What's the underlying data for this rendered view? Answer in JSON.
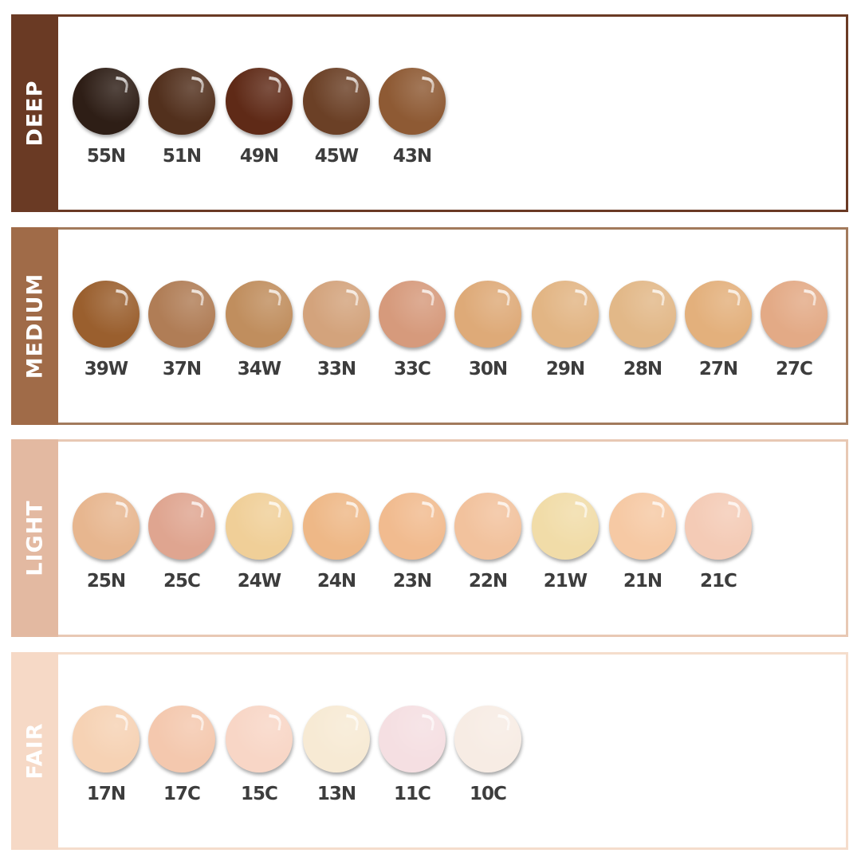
{
  "groups": [
    {
      "name": "DEEP",
      "color": "#6a3a24",
      "border": "#6a3a24",
      "shades": [
        {
          "code": "55N",
          "color": "#2e1e16"
        },
        {
          "code": "51N",
          "color": "#52301d"
        },
        {
          "code": "49N",
          "color": "#5f2a17"
        },
        {
          "code": "45W",
          "color": "#6b4026"
        },
        {
          "code": "43N",
          "color": "#8e5a34"
        }
      ]
    },
    {
      "name": "MEDIUM",
      "color": "#a06b48",
      "border": "#a27a5c",
      "shades": [
        {
          "code": "39W",
          "color": "#9a5f2e"
        },
        {
          "code": "37N",
          "color": "#b07d56"
        },
        {
          "code": "34W",
          "color": "#c08e5e"
        },
        {
          "code": "33N",
          "color": "#d3a37c"
        },
        {
          "code": "33C",
          "color": "#d69a7c"
        },
        {
          "code": "30N",
          "color": "#deaa78"
        },
        {
          "code": "29N",
          "color": "#e2b584"
        },
        {
          "code": "28N",
          "color": "#e2b888"
        },
        {
          "code": "27N",
          "color": "#e3b07c"
        },
        {
          "code": "27C",
          "color": "#e3aa86"
        }
      ]
    },
    {
      "name": "LIGHT",
      "color": "#e3b9a1",
      "border": "#e8c8b4",
      "shades": [
        {
          "code": "25N",
          "color": "#e7b68f"
        },
        {
          "code": "25C",
          "color": "#dfa590"
        },
        {
          "code": "24W",
          "color": "#f0cf98"
        },
        {
          "code": "24N",
          "color": "#eeb887"
        },
        {
          "code": "23N",
          "color": "#f1bb8f"
        },
        {
          "code": "22N",
          "color": "#f2c29d"
        },
        {
          "code": "21W",
          "color": "#f1dca8"
        },
        {
          "code": "21N",
          "color": "#f6c9a4"
        },
        {
          "code": "21C",
          "color": "#f4cbb6"
        }
      ]
    },
    {
      "name": "FAIR",
      "color": "#f6d9c6",
      "border": "#f5ddcc",
      "shades": [
        {
          "code": "17N",
          "color": "#f6d2b4"
        },
        {
          "code": "17C",
          "color": "#f4c8ae"
        },
        {
          "code": "15C",
          "color": "#f8d6c6"
        },
        {
          "code": "13N",
          "color": "#f7ead4"
        },
        {
          "code": "11C",
          "color": "#f5dfe2"
        },
        {
          "code": "10C",
          "color": "#f7ece4"
        }
      ]
    }
  ]
}
